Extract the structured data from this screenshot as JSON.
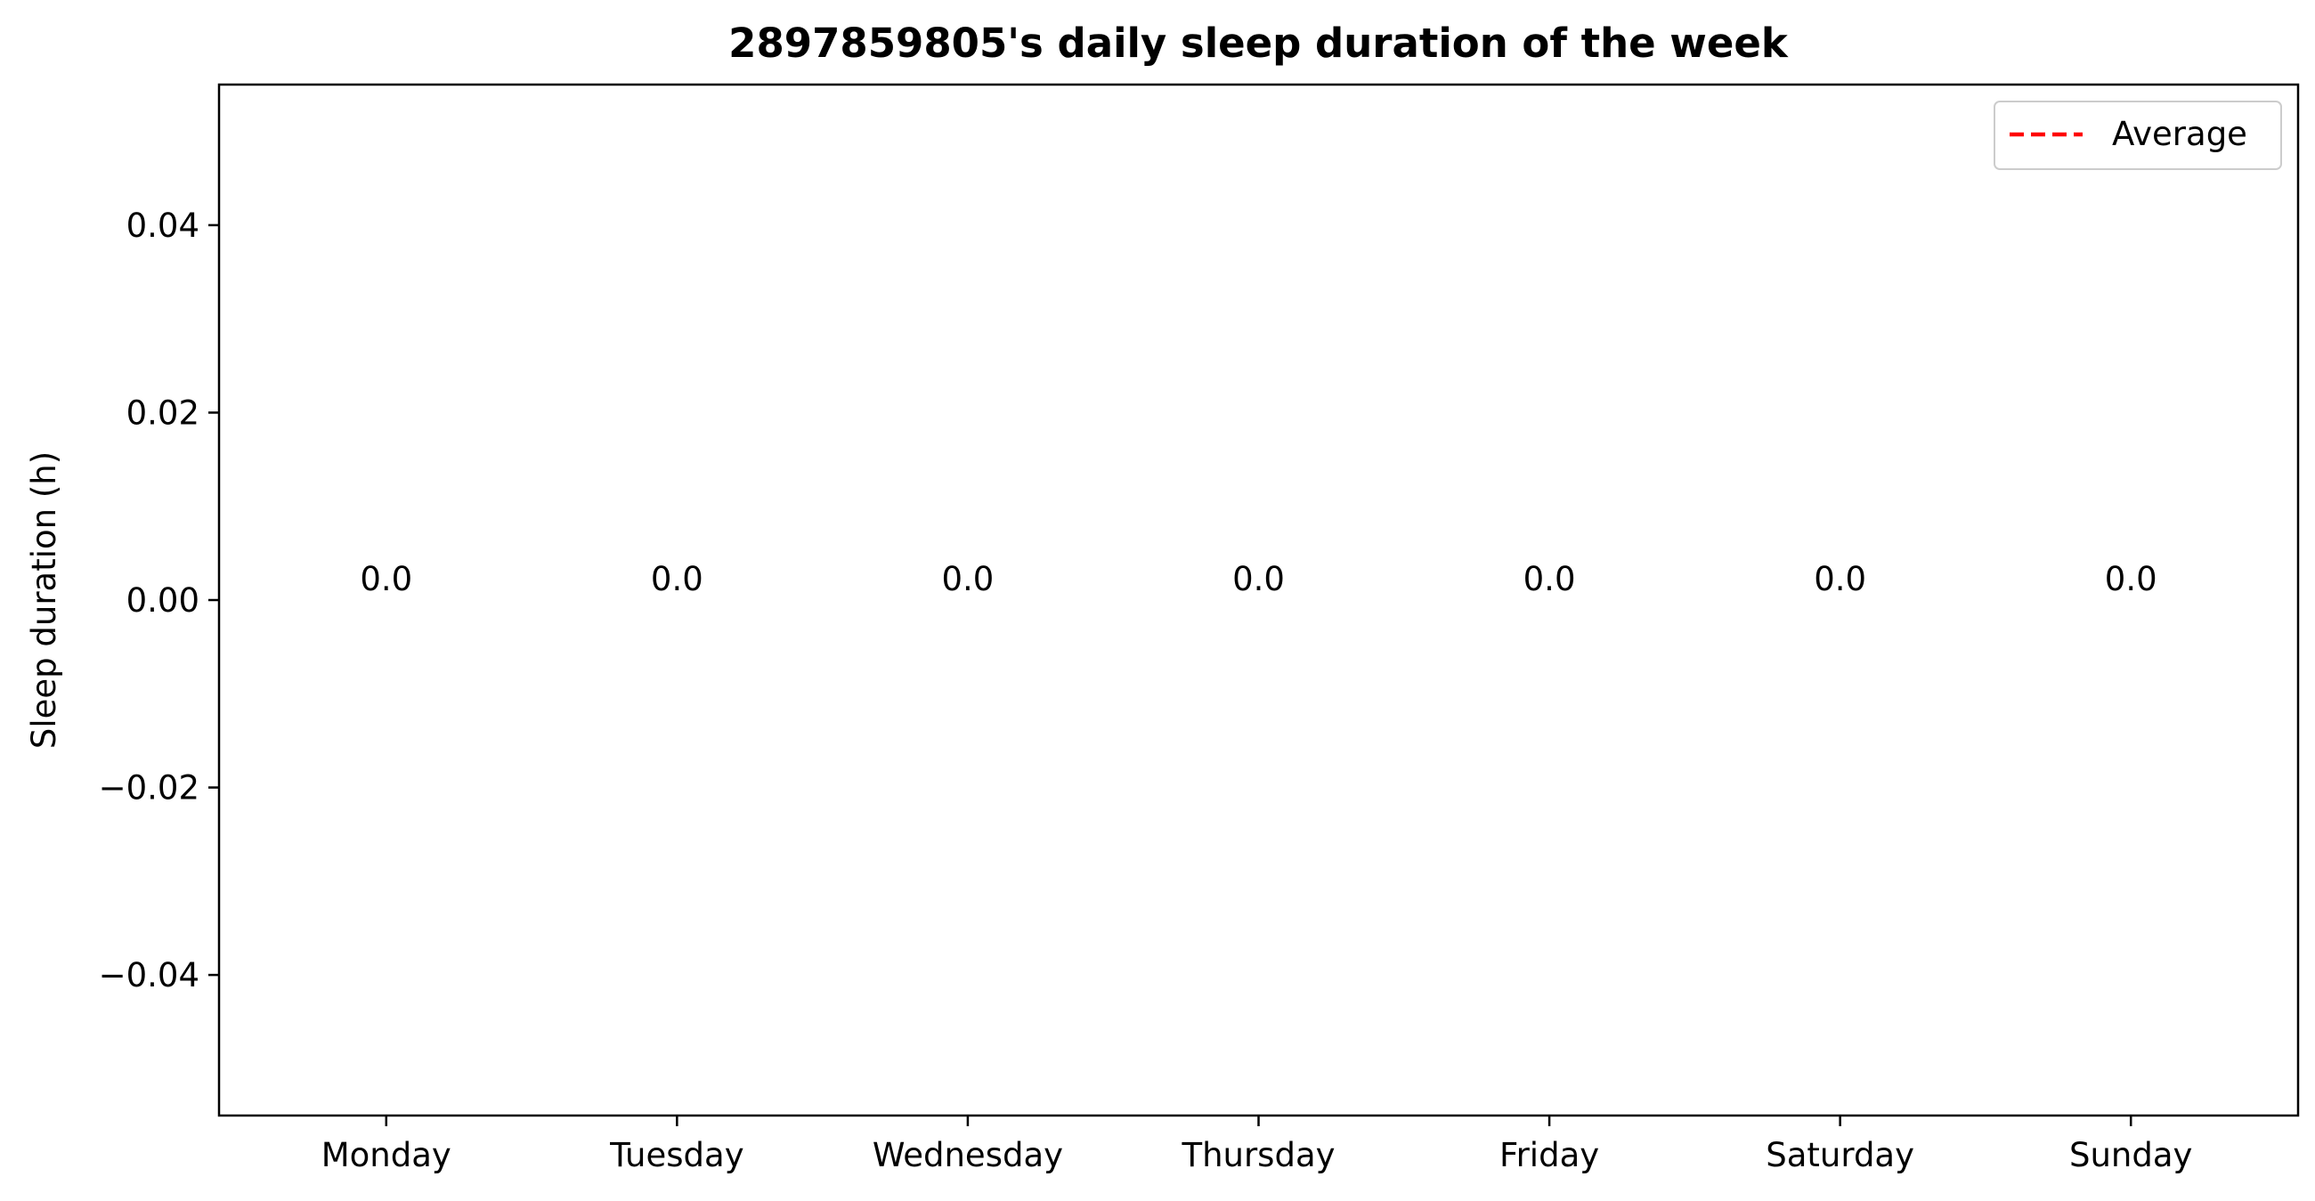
{
  "chart_data": {
    "type": "bar",
    "title": "2897859805's daily sleep duration of the week",
    "xlabel": "",
    "ylabel": "Sleep duration (h)",
    "categories": [
      "Monday",
      "Tuesday",
      "Wednesday",
      "Thursday",
      "Friday",
      "Saturday",
      "Sunday"
    ],
    "values": [
      0.0,
      0.0,
      0.0,
      0.0,
      0.0,
      0.0,
      0.0
    ],
    "value_labels": [
      "0.0",
      "0.0",
      "0.0",
      "0.0",
      "0.0",
      "0.0",
      "0.0"
    ],
    "ylim": [
      -0.055,
      0.055
    ],
    "yticks": [
      -0.04,
      -0.02,
      0.0,
      0.02,
      0.04
    ],
    "ytick_labels": [
      "−0.04",
      "−0.02",
      "0.00",
      "0.02",
      "0.04"
    ],
    "average": 0.0,
    "grid": false,
    "legend": {
      "placement": "top-right",
      "entries": [
        {
          "label": "Average",
          "style": "dashed",
          "color": "#ff0000"
        }
      ]
    },
    "colors": {
      "average_line": "#ff0000",
      "axes": "#000000",
      "background": "#ffffff"
    }
  }
}
